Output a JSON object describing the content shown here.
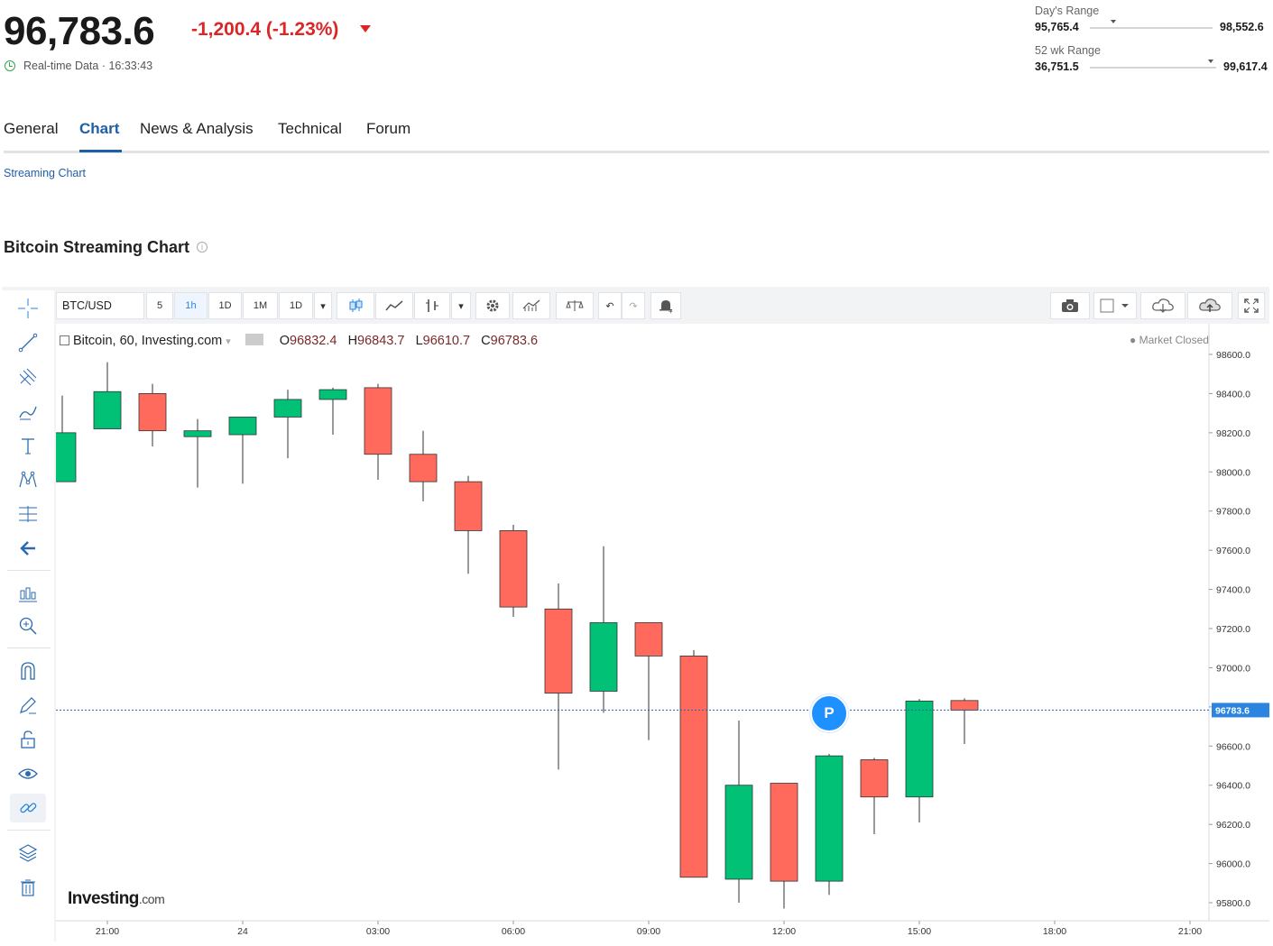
{
  "quote": {
    "price": "96,783.6",
    "change": "-1,200.4 (-1.23%)",
    "realtime": "Real-time Data · 16:33:43",
    "days_range": {
      "label": "Day's Range",
      "low": "95,765.4",
      "high": "98,552.6",
      "marker": 0.19
    },
    "wk52_range": {
      "label": "52 wk Range",
      "low": "36,751.5",
      "high": "99,617.4",
      "marker": 0.96
    }
  },
  "tabs": [
    {
      "label": "General",
      "active": false
    },
    {
      "label": "Chart",
      "active": true
    },
    {
      "label": "News & Analysis",
      "active": false
    },
    {
      "label": "Technical",
      "active": false
    },
    {
      "label": "Forum",
      "active": false
    }
  ],
  "subnav": {
    "label": "Streaming Chart"
  },
  "chart_title": "Bitcoin Streaming Chart",
  "toolbar": {
    "symbol": "BTC/USD",
    "intervals": [
      "5",
      "1h",
      "1D",
      "1M",
      "1D"
    ],
    "selected_interval": "1h"
  },
  "legend": {
    "name": "Bitcoin, 60, Investing.com",
    "o_label": "O",
    "o": "96832.4",
    "h_label": "H",
    "h": "96843.7",
    "l_label": "L",
    "l": "96610.7",
    "c_label": "C",
    "c": "96783.6"
  },
  "market_status": "● Market Closed",
  "price_marker": "P",
  "logo": {
    "main": "Investing",
    "suffix": ".com"
  },
  "colors": {
    "up": "#00c176",
    "down": "#ff6a5c",
    "accent": "#1f5fa8",
    "negative": "#dc2626"
  },
  "chart_data": {
    "type": "candlestick",
    "x_ticks": [
      "21:00",
      "24",
      "03:00",
      "06:00",
      "09:00",
      "12:00",
      "15:00",
      "18:00",
      "21:00"
    ],
    "y_ticks": [
      95800,
      96000,
      96200,
      96400,
      96600,
      96800,
      97000,
      97200,
      97400,
      97600,
      97800,
      98000,
      98200,
      98400,
      98600
    ],
    "ylim": [
      95700,
      98680
    ],
    "last_price": 96783.6,
    "last_price_label": "96783.6",
    "candles": [
      {
        "o": 97950,
        "h": 98390,
        "l": 97950,
        "c": 98200
      },
      {
        "o": 98220,
        "h": 98560,
        "l": 98220,
        "c": 98410
      },
      {
        "o": 98400,
        "h": 98450,
        "l": 98130,
        "c": 98210
      },
      {
        "o": 98180,
        "h": 98270,
        "l": 97920,
        "c": 98210
      },
      {
        "o": 98190,
        "h": 98280,
        "l": 97940,
        "c": 98280
      },
      {
        "o": 98280,
        "h": 98420,
        "l": 98070,
        "c": 98370
      },
      {
        "o": 98370,
        "h": 98430,
        "l": 98190,
        "c": 98420
      },
      {
        "o": 98430,
        "h": 98450,
        "l": 97960,
        "c": 98090
      },
      {
        "o": 98090,
        "h": 98210,
        "l": 97850,
        "c": 97950
      },
      {
        "o": 97950,
        "h": 97980,
        "l": 97480,
        "c": 97700
      },
      {
        "o": 97700,
        "h": 97730,
        "l": 97260,
        "c": 97310
      },
      {
        "o": 97300,
        "h": 97430,
        "l": 96480,
        "c": 96870
      },
      {
        "o": 96880,
        "h": 97620,
        "l": 96770,
        "c": 97230
      },
      {
        "o": 97230,
        "h": 97230,
        "l": 96630,
        "c": 97060
      },
      {
        "o": 97060,
        "h": 97090,
        "l": 95930,
        "c": 95930
      },
      {
        "o": 95920,
        "h": 96730,
        "l": 95800,
        "c": 96400
      },
      {
        "o": 96410,
        "h": 96410,
        "l": 95770,
        "c": 95910
      },
      {
        "o": 95910,
        "h": 96560,
        "l": 95840,
        "c": 96550
      },
      {
        "o": 96530,
        "h": 96540,
        "l": 96150,
        "c": 96340
      },
      {
        "o": 96340,
        "h": 96840,
        "l": 96210,
        "c": 96830
      },
      {
        "o": 96832.4,
        "h": 96843.7,
        "l": 96610.7,
        "c": 96783.6
      }
    ]
  }
}
